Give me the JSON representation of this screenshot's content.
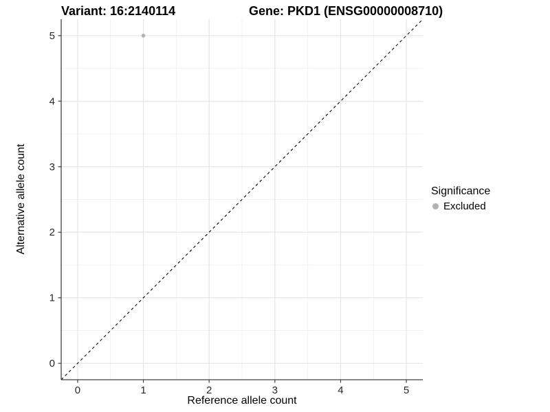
{
  "titles": {
    "variant": "Variant: 16:2140114",
    "gene": "Gene: PKD1 (ENSG00000008710)"
  },
  "chart_data": {
    "type": "scatter",
    "xlabel": "Reference allele count",
    "ylabel": "Alternative allele count",
    "xticks": [
      0,
      1,
      2,
      3,
      4,
      5
    ],
    "yticks": [
      0,
      1,
      2,
      3,
      4,
      5
    ],
    "xlim": [
      -0.25,
      5.25
    ],
    "ylim": [
      -0.25,
      5.25
    ],
    "grid": true,
    "points": [
      {
        "x": 1,
        "y": 5,
        "series": "Excluded"
      }
    ],
    "reference_line": {
      "slope": 1,
      "intercept": 0,
      "style": "dashed"
    },
    "legend": {
      "title": "Significance",
      "position": "right",
      "entries": [
        {
          "label": "Excluded",
          "color": "#B3B3B3"
        }
      ]
    },
    "colors": {
      "point": "#B3B3B3",
      "grid_major": "#E3E3E3",
      "grid_minor": "#F1F1F1",
      "axis_line": "#404040",
      "tick_text": "#262626",
      "reference_line": "#000000"
    }
  }
}
